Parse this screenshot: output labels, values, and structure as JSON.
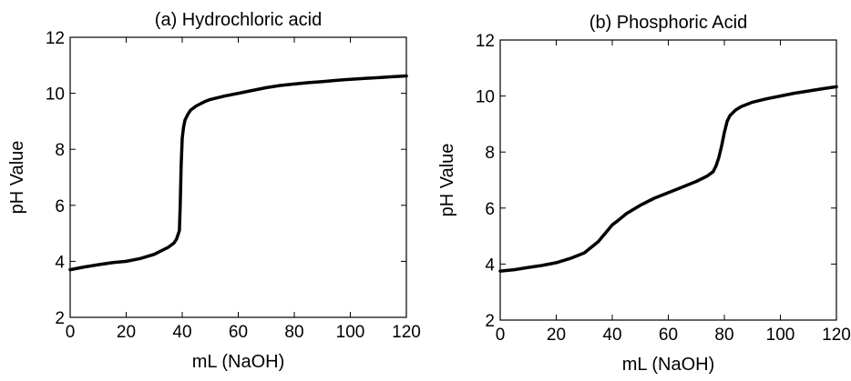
{
  "chart_data": [
    {
      "type": "line",
      "title": "(a) Hydrochloric acid",
      "xlabel": "mL (NaOH)",
      "ylabel": "pH Value",
      "xlim": [
        0,
        120
      ],
      "ylim": [
        2,
        12
      ],
      "xticks": [
        0,
        20,
        40,
        60,
        80,
        100,
        120
      ],
      "yticks": [
        2,
        4,
        6,
        8,
        10,
        12
      ],
      "grid": false,
      "legend": "none",
      "line_color": "#000000",
      "series": [
        {
          "x": [
            0,
            5,
            10,
            15,
            20,
            25,
            30,
            33,
            35,
            37,
            38,
            38.5,
            39,
            39.3,
            39.6,
            40,
            40.5,
            41,
            42,
            43,
            45,
            48,
            50,
            55,
            60,
            65,
            70,
            75,
            80,
            85,
            90,
            95,
            100,
            105,
            110,
            115,
            120
          ],
          "y": [
            3.7,
            3.8,
            3.88,
            3.95,
            4.0,
            4.1,
            4.25,
            4.4,
            4.5,
            4.65,
            4.8,
            4.95,
            5.1,
            6.0,
            7.4,
            8.4,
            8.8,
            9.05,
            9.25,
            9.4,
            9.55,
            9.7,
            9.78,
            9.9,
            10.0,
            10.1,
            10.2,
            10.28,
            10.33,
            10.38,
            10.42,
            10.46,
            10.5,
            10.53,
            10.56,
            10.59,
            10.62
          ]
        }
      ]
    },
    {
      "type": "line",
      "title": "(b) Phosphoric Acid",
      "xlabel": "mL (NaOH)",
      "ylabel": "pH Value",
      "xlim": [
        0,
        120
      ],
      "ylim": [
        2,
        12
      ],
      "xticks": [
        0,
        20,
        40,
        60,
        80,
        100,
        120
      ],
      "yticks": [
        2,
        4,
        6,
        8,
        10,
        12
      ],
      "grid": false,
      "legend": "none",
      "line_color": "#000000",
      "series": [
        {
          "x": [
            0,
            5,
            10,
            15,
            20,
            25,
            30,
            35,
            40,
            42,
            45,
            50,
            55,
            60,
            65,
            70,
            74,
            76,
            77,
            78,
            79,
            80,
            81,
            82,
            84,
            86,
            90,
            95,
            100,
            105,
            110,
            115,
            120
          ],
          "y": [
            3.75,
            3.8,
            3.88,
            3.95,
            4.05,
            4.2,
            4.4,
            4.8,
            5.4,
            5.55,
            5.8,
            6.1,
            6.35,
            6.55,
            6.75,
            6.95,
            7.15,
            7.3,
            7.5,
            7.8,
            8.2,
            8.7,
            9.1,
            9.3,
            9.5,
            9.62,
            9.78,
            9.9,
            10.0,
            10.1,
            10.18,
            10.26,
            10.33
          ]
        }
      ]
    }
  ]
}
